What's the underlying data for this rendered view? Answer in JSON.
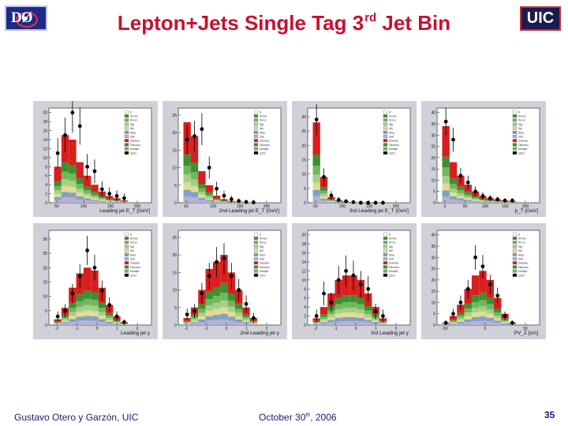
{
  "header": {
    "logo_left": "DØ",
    "logo_right": "UIC",
    "title_main": "Lepton+Jets Single Tag 3",
    "title_sup": "rd",
    "title_tail": " Jet Bin"
  },
  "footer": {
    "author": "Gustavo Otero y Garzón, UIC",
    "date_main": "October 30",
    "date_sup": "th",
    "date_tail": ", 2006",
    "page_number": "35"
  },
  "colors": {
    "title": "#c8102e",
    "panel_bg": "#cfd0d8",
    "signal": "#d91e1e",
    "stack": [
      "#d91e1e",
      "#3d8f2f",
      "#6fb85a",
      "#a6cf86",
      "#e2dc8f",
      "#7fa0c8",
      "#b9b0d3"
    ]
  },
  "legend_labels": [
    "tt",
    "W+bb",
    "W+cc",
    "Wjj",
    "Wc",
    "ttbar",
    "Zbb",
    "Ztautau",
    "Diboson",
    "Multijet",
    "QCD"
  ],
  "chart_data": [
    {
      "type": "bar",
      "xlabel": "Leading jet E_T [GeV]",
      "x_ticks": [
        "50",
        "100",
        "150",
        "200"
      ],
      "y_ticks": [
        "0",
        "2",
        "4",
        "6",
        "8",
        "10",
        "12",
        "14",
        "16",
        "18",
        "20"
      ],
      "ylim": [
        0,
        21
      ],
      "values": [
        8,
        15,
        14,
        9,
        6,
        4,
        2.5,
        1.5,
        1,
        0.5
      ],
      "data": [
        11,
        15,
        20,
        17,
        8,
        7,
        3,
        2,
        1.5,
        1
      ]
    },
    {
      "type": "bar",
      "xlabel": "2nd Leading jet E_T [GeV]",
      "x_ticks": [
        "50",
        "100",
        "150",
        "200"
      ],
      "y_ticks": [
        "0",
        "5",
        "10",
        "15",
        "20",
        "25"
      ],
      "ylim": [
        0,
        27
      ],
      "values": [
        23,
        19,
        9,
        5,
        2,
        1,
        0.5,
        0.3,
        0.1,
        0.1
      ],
      "data": [
        18,
        19,
        21,
        10,
        4,
        2,
        1,
        0.5,
        0.2,
        0.1
      ]
    },
    {
      "type": "bar",
      "xlabel": "3rd Leading jet E_T [GeV]",
      "x_ticks": [
        "50",
        "100",
        "150",
        "200"
      ],
      "y_ticks": [
        "0",
        "5",
        "10",
        "15",
        "20",
        "25",
        "30"
      ],
      "ylim": [
        0,
        33
      ],
      "values": [
        28,
        9,
        2,
        0.8,
        0.4,
        0.2,
        0.1,
        0,
        0,
        0
      ],
      "data": [
        29,
        9,
        2.5,
        1,
        0.5,
        0.2,
        0,
        0,
        0,
        0
      ]
    },
    {
      "type": "bar",
      "xlabel": "p_T [GeV]",
      "x_ticks": [
        "0",
        "50",
        "100",
        "150",
        "200"
      ],
      "y_ticks": [
        "0",
        "5",
        "10",
        "15",
        "20",
        "25",
        "30",
        "35",
        "40"
      ],
      "ylim": [
        0,
        42
      ],
      "values": [
        34,
        18,
        12,
        8,
        5,
        3,
        2,
        1.5,
        1,
        0.8
      ],
      "data": [
        36,
        28,
        12,
        9,
        5,
        3,
        2,
        1.5,
        1,
        1
      ]
    },
    {
      "type": "bar",
      "xlabel": "Leading jet y",
      "x_ticks": [
        "-2",
        "-1",
        "0",
        "1",
        "2"
      ],
      "y_ticks": [
        "0",
        "5",
        "10",
        "15",
        "20",
        "25",
        "30"
      ],
      "ylim": [
        0,
        33
      ],
      "values": [
        2,
        6,
        13,
        18,
        20,
        19,
        13,
        7,
        3,
        1
      ],
      "data": [
        3,
        5,
        11,
        17,
        26,
        20,
        12,
        7,
        3,
        1
      ]
    },
    {
      "type": "bar",
      "xlabel": "2nd Leading jet y",
      "x_ticks": [
        "-2",
        "-1",
        "0",
        "1",
        "2"
      ],
      "y_ticks": [
        "0",
        "5",
        "10",
        "15",
        "20",
        "25"
      ],
      "ylim": [
        0,
        27
      ],
      "values": [
        2,
        5,
        10,
        16,
        18,
        20,
        15,
        10,
        5,
        2
      ],
      "data": [
        3,
        4,
        9,
        14,
        18,
        19,
        14,
        10,
        6,
        2
      ]
    },
    {
      "type": "bar",
      "xlabel": "3rd Leading jet y",
      "x_ticks": [
        "-2",
        "-1",
        "0",
        "1",
        "2"
      ],
      "y_ticks": [
        "0",
        "2",
        "4",
        "6",
        "8",
        "10",
        "12",
        "14",
        "16",
        "18",
        "20"
      ],
      "ylim": [
        0,
        21
      ],
      "values": [
        1.5,
        4,
        7,
        10,
        11,
        11,
        10,
        7,
        4,
        1.5
      ],
      "data": [
        2,
        7,
        5,
        10,
        12,
        11,
        9,
        8,
        3,
        2
      ]
    },
    {
      "type": "bar",
      "xlabel": "PV_Z [cm]",
      "x_ticks": [
        "-50",
        "0",
        "50"
      ],
      "y_ticks": [
        "0",
        "5",
        "10",
        "15",
        "20",
        "25",
        "30",
        "35",
        "40"
      ],
      "ylim": [
        0,
        42
      ],
      "values": [
        1,
        4,
        9,
        16,
        22,
        24,
        20,
        12,
        5,
        1
      ],
      "data": [
        1,
        5,
        10,
        16,
        30,
        26,
        18,
        13,
        4,
        1
      ]
    }
  ]
}
